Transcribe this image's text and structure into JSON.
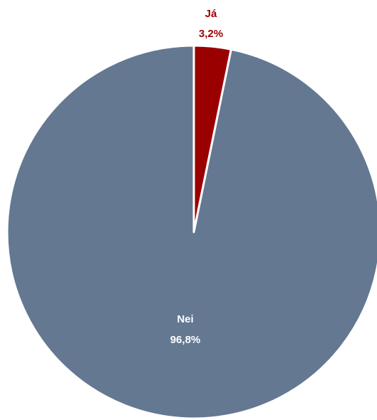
{
  "chart_data": {
    "type": "pie",
    "title": "",
    "start": "top, clockwise",
    "slices": [
      {
        "name": "Já",
        "value": 3.2,
        "label": "3,2%",
        "color": "#9b0000"
      },
      {
        "name": "Nei",
        "value": 96.8,
        "label": "96,8%",
        "color": "#647892"
      }
    ],
    "label_colors": {
      "Já": "#9b0000",
      "Nei": "#ffffff"
    },
    "separator_color": "#ffffff"
  }
}
